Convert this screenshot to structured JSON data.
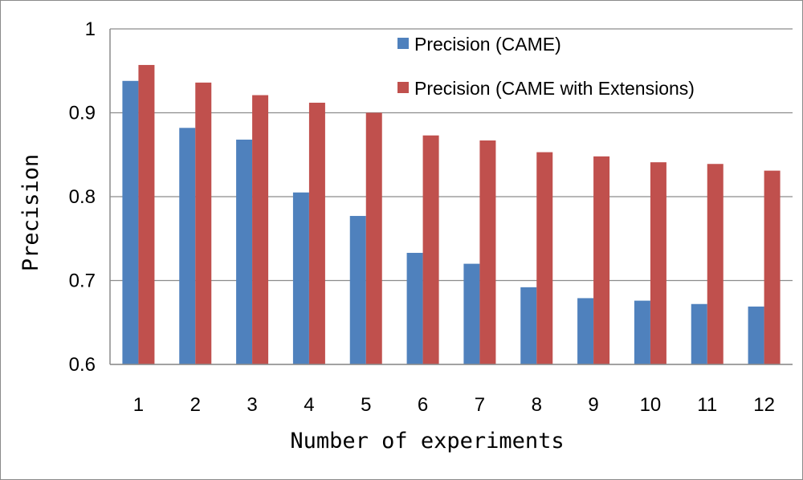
{
  "chart_data": {
    "type": "bar",
    "title": "",
    "xlabel": "Number of experiments",
    "ylabel": "Precision",
    "ylim": [
      0.6,
      1.0
    ],
    "yticks": [
      "0.6",
      "0.7",
      "0.8",
      "0.9",
      "1"
    ],
    "grid": true,
    "legend_position": "top-right",
    "categories": [
      "1",
      "2",
      "3",
      "4",
      "5",
      "6",
      "7",
      "8",
      "9",
      "10",
      "11",
      "12"
    ],
    "series": [
      {
        "name": "Precision (CAME)",
        "color": "#4f81bd",
        "values": [
          0.938,
          0.882,
          0.868,
          0.805,
          0.777,
          0.733,
          0.72,
          0.692,
          0.679,
          0.676,
          0.672,
          0.669
        ]
      },
      {
        "name": "Precision (CAME with Extensions)",
        "color": "#c0504d",
        "values": [
          0.957,
          0.936,
          0.921,
          0.912,
          0.9,
          0.873,
          0.867,
          0.853,
          0.848,
          0.841,
          0.839,
          0.831
        ]
      }
    ]
  }
}
